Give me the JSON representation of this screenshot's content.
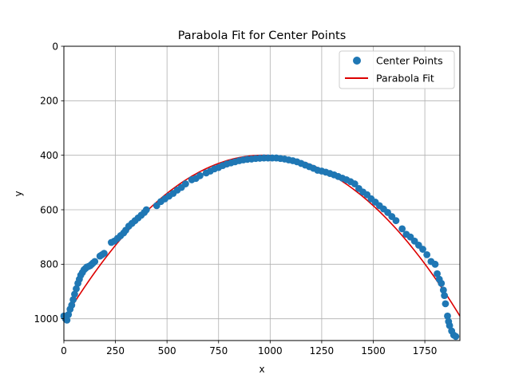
{
  "chart_data": {
    "type": "scatter",
    "title": "Parabola Fit for Center Points",
    "xlabel": "x",
    "ylabel": "y",
    "xlim": [
      0,
      1920
    ],
    "ylim": [
      1080,
      0
    ],
    "y_inverted": true,
    "grid": true,
    "legend_position": "top-right",
    "x_ticks": [
      0,
      250,
      500,
      750,
      1000,
      1250,
      1500,
      1750
    ],
    "y_ticks": [
      0,
      200,
      400,
      600,
      800,
      1000
    ],
    "series": [
      {
        "name": "Center Points",
        "kind": "scatter",
        "color": "#1f77b4",
        "x": [
          0,
          8,
          15,
          22,
          30,
          38,
          45,
          52,
          60,
          68,
          75,
          82,
          90,
          98,
          105,
          112,
          120,
          128,
          135,
          142,
          150,
          175,
          185,
          195,
          230,
          245,
          260,
          275,
          290,
          300,
          315,
          330,
          345,
          360,
          375,
          390,
          400,
          450,
          470,
          490,
          510,
          530,
          550,
          570,
          590,
          620,
          640,
          660,
          690,
          710,
          730,
          750,
          770,
          790,
          810,
          830,
          850,
          870,
          890,
          910,
          930,
          950,
          970,
          990,
          1010,
          1030,
          1050,
          1070,
          1090,
          1110,
          1130,
          1150,
          1170,
          1190,
          1210,
          1230,
          1250,
          1270,
          1290,
          1310,
          1330,
          1350,
          1370,
          1390,
          1410,
          1430,
          1450,
          1470,
          1490,
          1510,
          1530,
          1550,
          1570,
          1590,
          1610,
          1640,
          1660,
          1680,
          1700,
          1720,
          1740,
          1760,
          1780,
          1800,
          1810,
          1820,
          1830,
          1840,
          1845,
          1850,
          1860,
          1865,
          1870,
          1880,
          1890,
          1900
        ],
        "y": [
          990,
          1000,
          1005,
          985,
          965,
          950,
          930,
          910,
          890,
          870,
          855,
          840,
          830,
          820,
          815,
          810,
          808,
          805,
          800,
          795,
          790,
          770,
          765,
          760,
          720,
          715,
          705,
          695,
          685,
          675,
          660,
          650,
          640,
          630,
          620,
          610,
          600,
          585,
          570,
          560,
          550,
          540,
          528,
          518,
          505,
          490,
          485,
          475,
          465,
          458,
          450,
          445,
          438,
          432,
          428,
          424,
          420,
          417,
          415,
          414,
          412,
          411,
          410,
          410,
          410,
          410,
          412,
          414,
          417,
          420,
          424,
          430,
          436,
          442,
          448,
          455,
          458,
          462,
          467,
          472,
          478,
          484,
          490,
          497,
          505,
          522,
          535,
          545,
          560,
          572,
          585,
          597,
          610,
          625,
          640,
          670,
          690,
          700,
          715,
          730,
          745,
          765,
          790,
          800,
          835,
          855,
          870,
          895,
          915,
          945,
          990,
          1010,
          1025,
          1045,
          1060,
          1065
        ]
      },
      {
        "name": "Parabola Fit",
        "kind": "line",
        "color": "#dd0000",
        "vertex": [
          965,
          400
        ],
        "coefficient": 0.000647,
        "x_range": [
          0,
          1920
        ]
      }
    ]
  }
}
